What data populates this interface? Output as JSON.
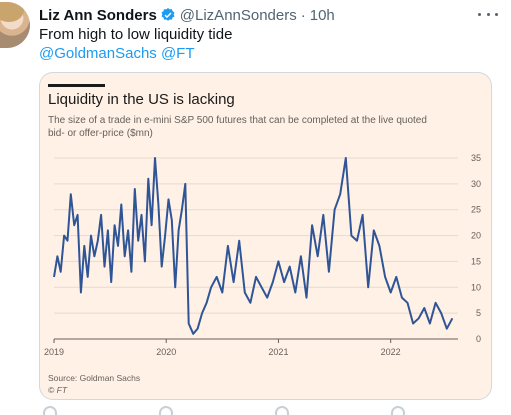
{
  "tweet": {
    "author_name": "Liz Ann Sonders",
    "handle": "@LizAnnSonders",
    "separator": "·",
    "time": "10h",
    "text": "From high to low liquidity tide",
    "mention_1": "@GoldmanSachs",
    "mention_2": "@FT",
    "accent_color": "#1d9bf0"
  },
  "card": {
    "title": "Liquidity in the US is lacking",
    "subtitle": "The size of a trade in e-mini S&P 500 futures that can be completed at the live quoted bid- or offer-price ($mn)",
    "source": "Source: Goldman Sachs",
    "credit": "© FT",
    "background_color": "#fff1e5",
    "line_color": "#2f5597"
  },
  "chart_data": {
    "type": "line",
    "title": "Liquidity in the US is lacking",
    "subtitle": "The size of a trade in e-mini S&P 500 futures that can be completed at the live quoted bid- or offer-price ($mn)",
    "xlabel": "",
    "ylabel": "",
    "x_tick_labels": [
      "2019",
      "2020",
      "2021",
      "2022"
    ],
    "x_range": [
      2019.0,
      2022.6
    ],
    "ylim": [
      0,
      35
    ],
    "y_ticks": [
      0,
      5,
      10,
      15,
      20,
      25,
      30,
      35
    ],
    "y_axis_side": "right",
    "grid": "horizontal",
    "legend": "none",
    "series": [
      {
        "x": [
          2019.0,
          2019.03,
          2019.06,
          2019.09,
          2019.12,
          2019.15,
          2019.18,
          2019.21,
          2019.24,
          2019.27,
          2019.3,
          2019.33,
          2019.36,
          2019.39,
          2019.42,
          2019.45,
          2019.48,
          2019.51,
          2019.54,
          2019.57,
          2019.6,
          2019.63,
          2019.66,
          2019.69,
          2019.72,
          2019.75,
          2019.78,
          2019.81,
          2019.84,
          2019.87,
          2019.9,
          2019.93,
          2019.96,
          2019.99,
          2020.02,
          2020.05,
          2020.08,
          2020.11,
          2020.14,
          2020.17,
          2020.2,
          2020.24,
          2020.28,
          2020.32,
          2020.36,
          2020.4,
          2020.45,
          2020.5,
          2020.55,
          2020.6,
          2020.65,
          2020.7,
          2020.75,
          2020.8,
          2020.85,
          2020.9,
          2020.95,
          2021.0,
          2021.05,
          2021.1,
          2021.15,
          2021.2,
          2021.25,
          2021.3,
          2021.35,
          2021.4,
          2021.45,
          2021.5,
          2021.55,
          2021.6,
          2021.65,
          2021.7,
          2021.75,
          2021.8,
          2021.85,
          2021.9,
          2021.95,
          2022.0,
          2022.05,
          2022.1,
          2022.15,
          2022.2,
          2022.25,
          2022.3,
          2022.35,
          2022.4,
          2022.45,
          2022.5,
          2022.55
        ],
        "y": [
          12,
          16,
          13,
          20,
          19,
          28,
          22,
          24,
          9,
          18,
          12,
          20,
          16,
          19,
          24,
          14,
          21,
          11,
          22,
          18,
          26,
          16,
          21,
          13,
          29,
          19,
          24,
          15,
          31,
          22,
          35,
          26,
          14,
          20,
          27,
          23,
          10,
          21,
          25,
          30,
          3,
          1,
          2,
          5,
          7,
          10,
          12,
          9,
          18,
          11,
          19,
          9,
          7,
          12,
          10,
          8,
          11,
          15,
          11,
          14,
          9,
          16,
          8,
          22,
          16,
          24,
          13,
          25,
          28,
          36,
          20,
          19,
          24,
          10,
          21,
          18,
          12,
          9,
          12,
          8,
          7,
          3,
          4,
          6,
          3,
          7,
          5,
          2,
          4
        ]
      }
    ]
  }
}
